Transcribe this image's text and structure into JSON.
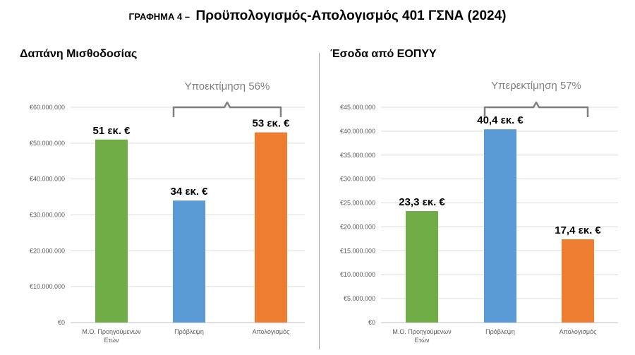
{
  "title": {
    "prefix": "ΓΡΑΦΗΜΑ 4 –",
    "main": "Προϋπολογισμός-Απολογισμός 401 ΓΣΝΑ (2024)"
  },
  "chart_data": [
    {
      "type": "bar",
      "title": "Δαπάνη Μισθοδοσίας",
      "categories": [
        [
          "Μ.Ο. Προηγούμενων",
          "Ετών"
        ],
        [
          "Πρόβλεψη"
        ],
        [
          "Απολογισμός"
        ]
      ],
      "values": [
        51000000,
        34000000,
        53000000
      ],
      "data_labels": [
        "51 εκ. €",
        "34 εκ. €",
        "53 εκ. €"
      ],
      "colors": [
        "#70ad47",
        "#5b9bd5",
        "#ed7d31"
      ],
      "ylim": [
        0,
        60000000
      ],
      "ytick_step": 10000000,
      "ytick_labels": [
        "€0",
        "€10.000.000",
        "€20.000.000",
        "€30.000.000",
        "€40.000.000",
        "€50.000.000",
        "€60.000.000"
      ],
      "grid": true,
      "bracket_label": "Υποεκτίμηση 56%",
      "bracket_between": [
        1,
        2
      ]
    },
    {
      "type": "bar",
      "title": "Έσοδα από ΕΟΠΥΥ",
      "categories": [
        [
          "Μ.Ο. Προηγούμενων",
          "Ετών"
        ],
        [
          "Πρόβλεψη"
        ],
        [
          "Απολογισμός"
        ]
      ],
      "values": [
        23300000,
        40400000,
        17400000
      ],
      "data_labels": [
        "23,3 εκ. €",
        "40,4 εκ. €",
        "17,4 εκ. €"
      ],
      "colors": [
        "#70ad47",
        "#5b9bd5",
        "#ed7d31"
      ],
      "ylim": [
        0,
        45000000
      ],
      "ytick_step": 5000000,
      "ytick_labels": [
        "€0",
        "€5.000.000",
        "€10.000.000",
        "€15.000.000",
        "€20.000.000",
        "€25.000.000",
        "€30.000.000",
        "€35.000.000",
        "€40.000.000",
        "€45.000.000"
      ],
      "grid": true,
      "bracket_label": "Υπερεκτίμηση 57%",
      "bracket_between": [
        1,
        2
      ]
    }
  ]
}
